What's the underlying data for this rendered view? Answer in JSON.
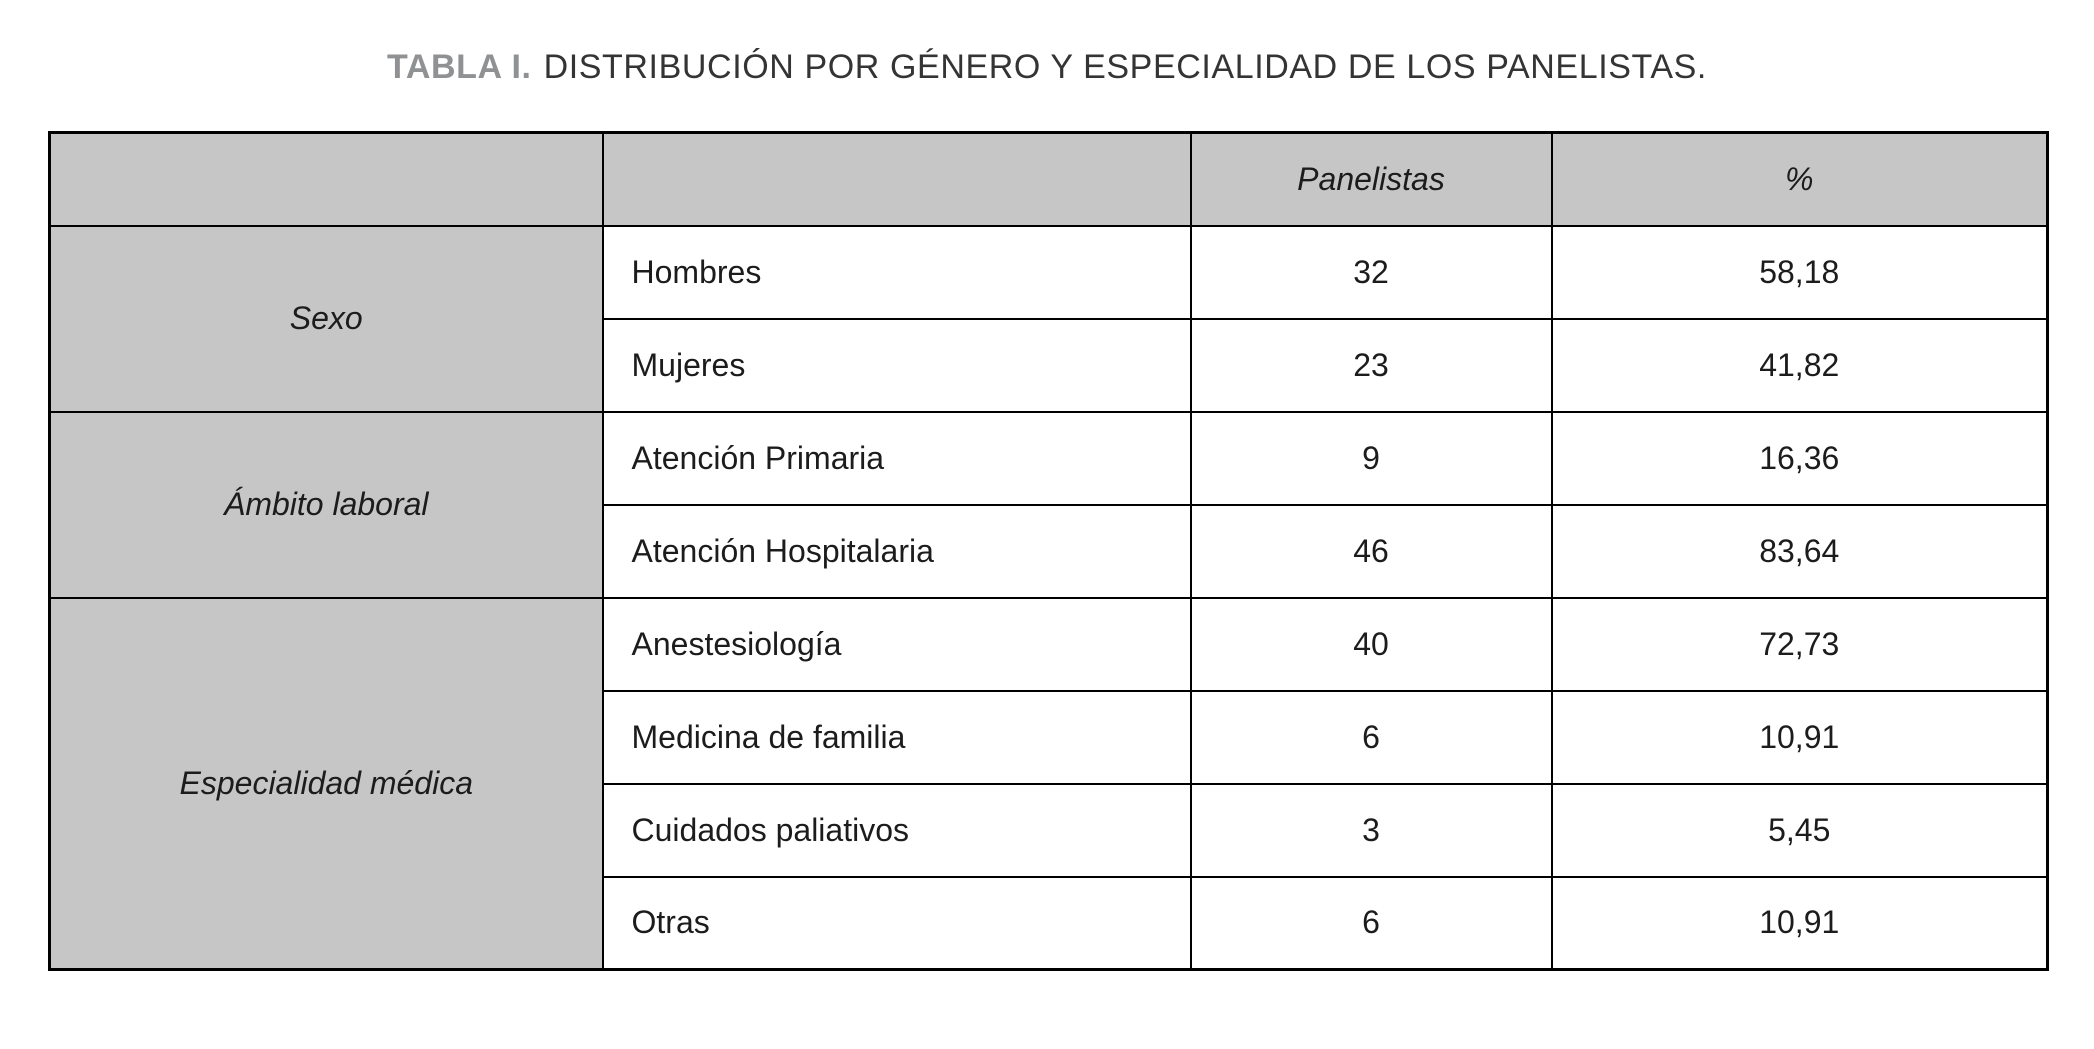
{
  "title": {
    "label": "TABLA I.",
    "text": "DISTRIBUCIÓN POR GÉNERO Y ESPECIALIDAD DE LOS PANELISTAS."
  },
  "table": {
    "header": {
      "group": "",
      "category": "",
      "panelistas": "Panelistas",
      "percent": "%"
    },
    "groups": [
      {
        "label": "Sexo",
        "rows": [
          {
            "category": "Hombres",
            "panelistas": "32",
            "percent": "58,18"
          },
          {
            "category": "Mujeres",
            "panelistas": "23",
            "percent": "41,82"
          }
        ]
      },
      {
        "label": "Ámbito laboral",
        "rows": [
          {
            "category": "Atención Primaria",
            "panelistas": "9",
            "percent": "16,36"
          },
          {
            "category": "Atención Hospitalaria",
            "panelistas": "46",
            "percent": "83,64"
          }
        ]
      },
      {
        "label": "Especialidad médica",
        "rows": [
          {
            "category": "Anestesiología",
            "panelistas": "40",
            "percent": "72,73"
          },
          {
            "category": "Medicina de familia",
            "panelistas": "6",
            "percent": "10,91"
          },
          {
            "category": "Cuidados paliativos",
            "panelistas": "3",
            "percent": "5,45"
          },
          {
            "category": "Otras",
            "panelistas": "6",
            "percent": "10,91"
          }
        ]
      }
    ]
  },
  "colors": {
    "header_fill": "#c6c6c6",
    "group_fill": "#c6c6c6",
    "border": "#000000",
    "caption_label": "#8f9193",
    "caption_text": "#343434",
    "body_text": "#1c1c1c"
  }
}
